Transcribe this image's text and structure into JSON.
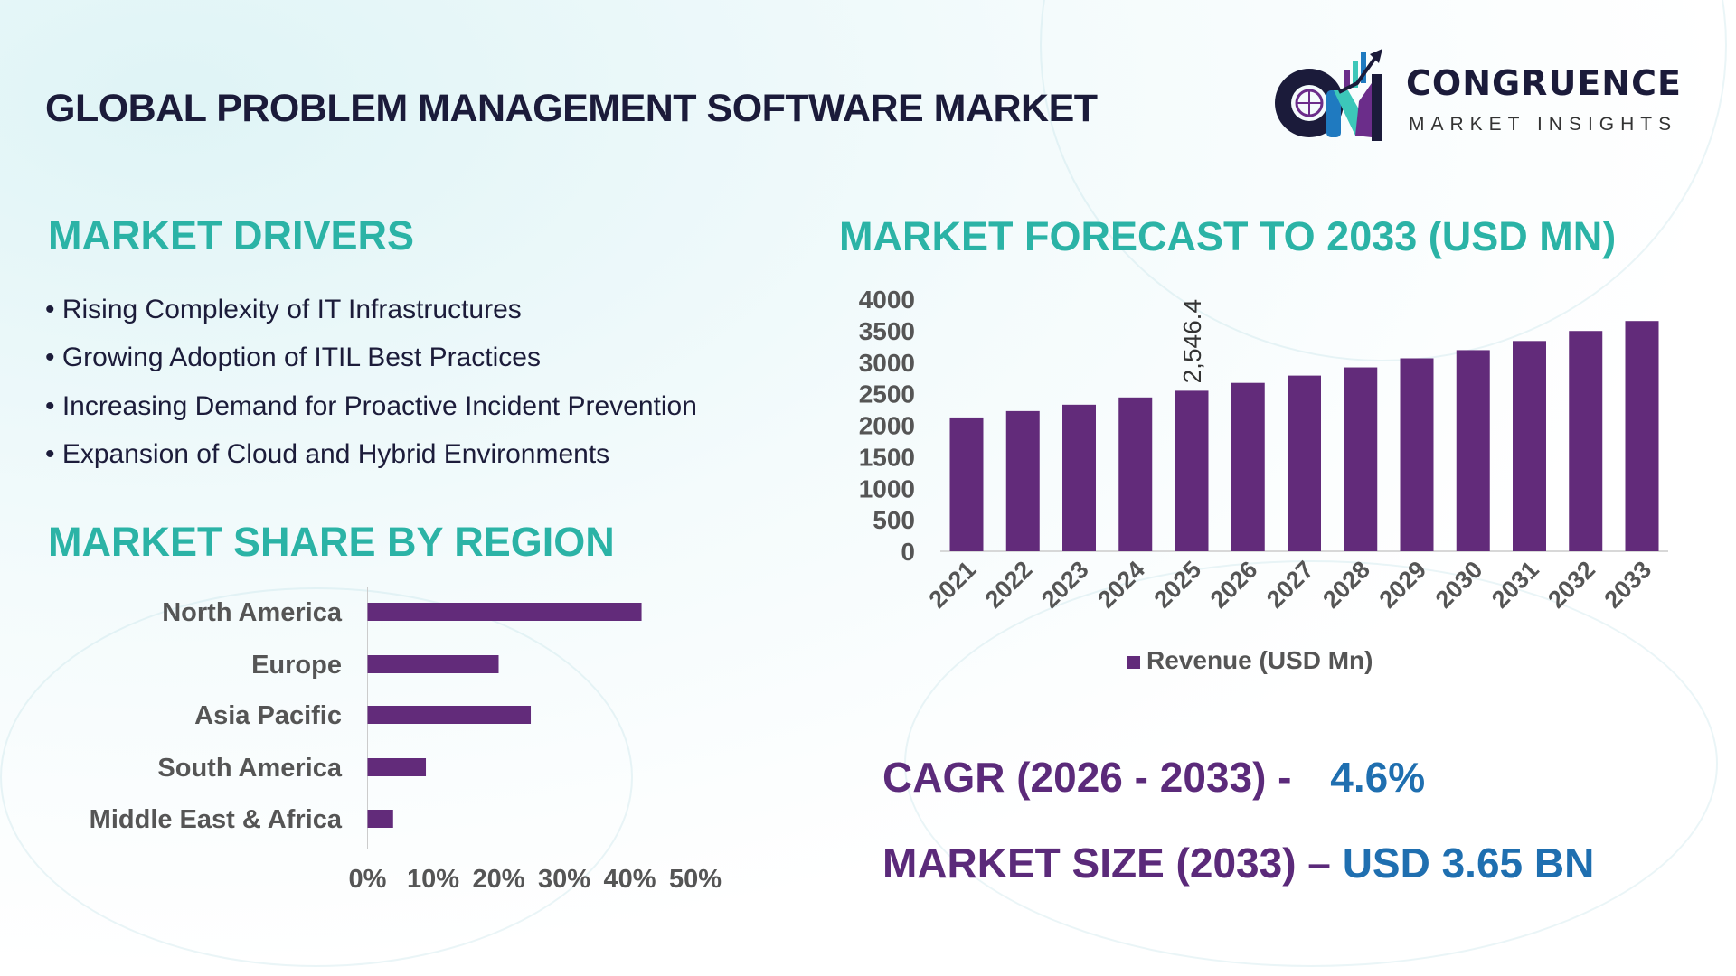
{
  "header": {
    "title": "GLOBAL PROBLEM MANAGEMENT SOFTWARE MARKET"
  },
  "logo": {
    "name": "CONGRUENCE",
    "tagline": "MARKET INSIGHTS",
    "colors": {
      "dark": "#1b1b3a",
      "teal": "#3cc7b9",
      "blue": "#1f7ac0",
      "purple": "#6b2d8a"
    }
  },
  "drivers": {
    "heading": "MARKET DRIVERS",
    "items": [
      "Rising Complexity of IT Infrastructures",
      "Growing Adoption of ITIL Best Practices",
      "Increasing Demand for Proactive Incident Prevention",
      "Expansion of Cloud and Hybrid Environments"
    ]
  },
  "region": {
    "heading": "MARKET SHARE BY REGION"
  },
  "forecast": {
    "heading": "MARKET FORECAST TO 2033 (USD MN)"
  },
  "summary": {
    "cagr_label": "CAGR (2026 - 2033) -",
    "cagr_value": "4.6%",
    "size_label": "MARKET SIZE (2033) –",
    "size_value": "USD 3.65 BN"
  },
  "colors": {
    "bar": "#622b7a",
    "heading": "#2bb3a6",
    "summary_label": "#5b2a7a",
    "summary_value": "#1f6fb0",
    "axis_text": "#555555"
  },
  "chart_data": [
    {
      "type": "bar",
      "orientation": "vertical",
      "categories": [
        "2021",
        "2022",
        "2023",
        "2024",
        "2025",
        "2026",
        "2027",
        "2028",
        "2029",
        "2030",
        "2031",
        "2032",
        "2033"
      ],
      "series": [
        {
          "name": "Revenue (USD Mn)",
          "values": [
            2123,
            2224,
            2325,
            2440,
            2546.4,
            2671,
            2787,
            2917,
            3061,
            3191,
            3336,
            3495,
            3653
          ]
        }
      ],
      "data_labels": [
        {
          "category": "2025",
          "text": "2,546.4"
        }
      ],
      "yticks": [
        "0",
        "500",
        "1000",
        "1500",
        "2000",
        "2500",
        "3000",
        "3500",
        "4000"
      ],
      "ylim": [
        0,
        4000
      ],
      "grid": false,
      "legend": "bottom",
      "title": "",
      "xlabel": "",
      "ylabel": ""
    },
    {
      "type": "bar",
      "orientation": "horizontal",
      "categories": [
        "North America",
        "Europe",
        "Asia Pacific",
        "South America",
        "Middle East & Africa"
      ],
      "values": [
        41.8,
        20.0,
        24.9,
        8.9,
        3.9
      ],
      "unit": "%",
      "xticks": [
        "0%",
        "10%",
        "20%",
        "30%",
        "40%",
        "50%"
      ],
      "xlim": [
        0,
        50
      ],
      "grid": false,
      "title": "",
      "xlabel": "",
      "ylabel": ""
    }
  ]
}
